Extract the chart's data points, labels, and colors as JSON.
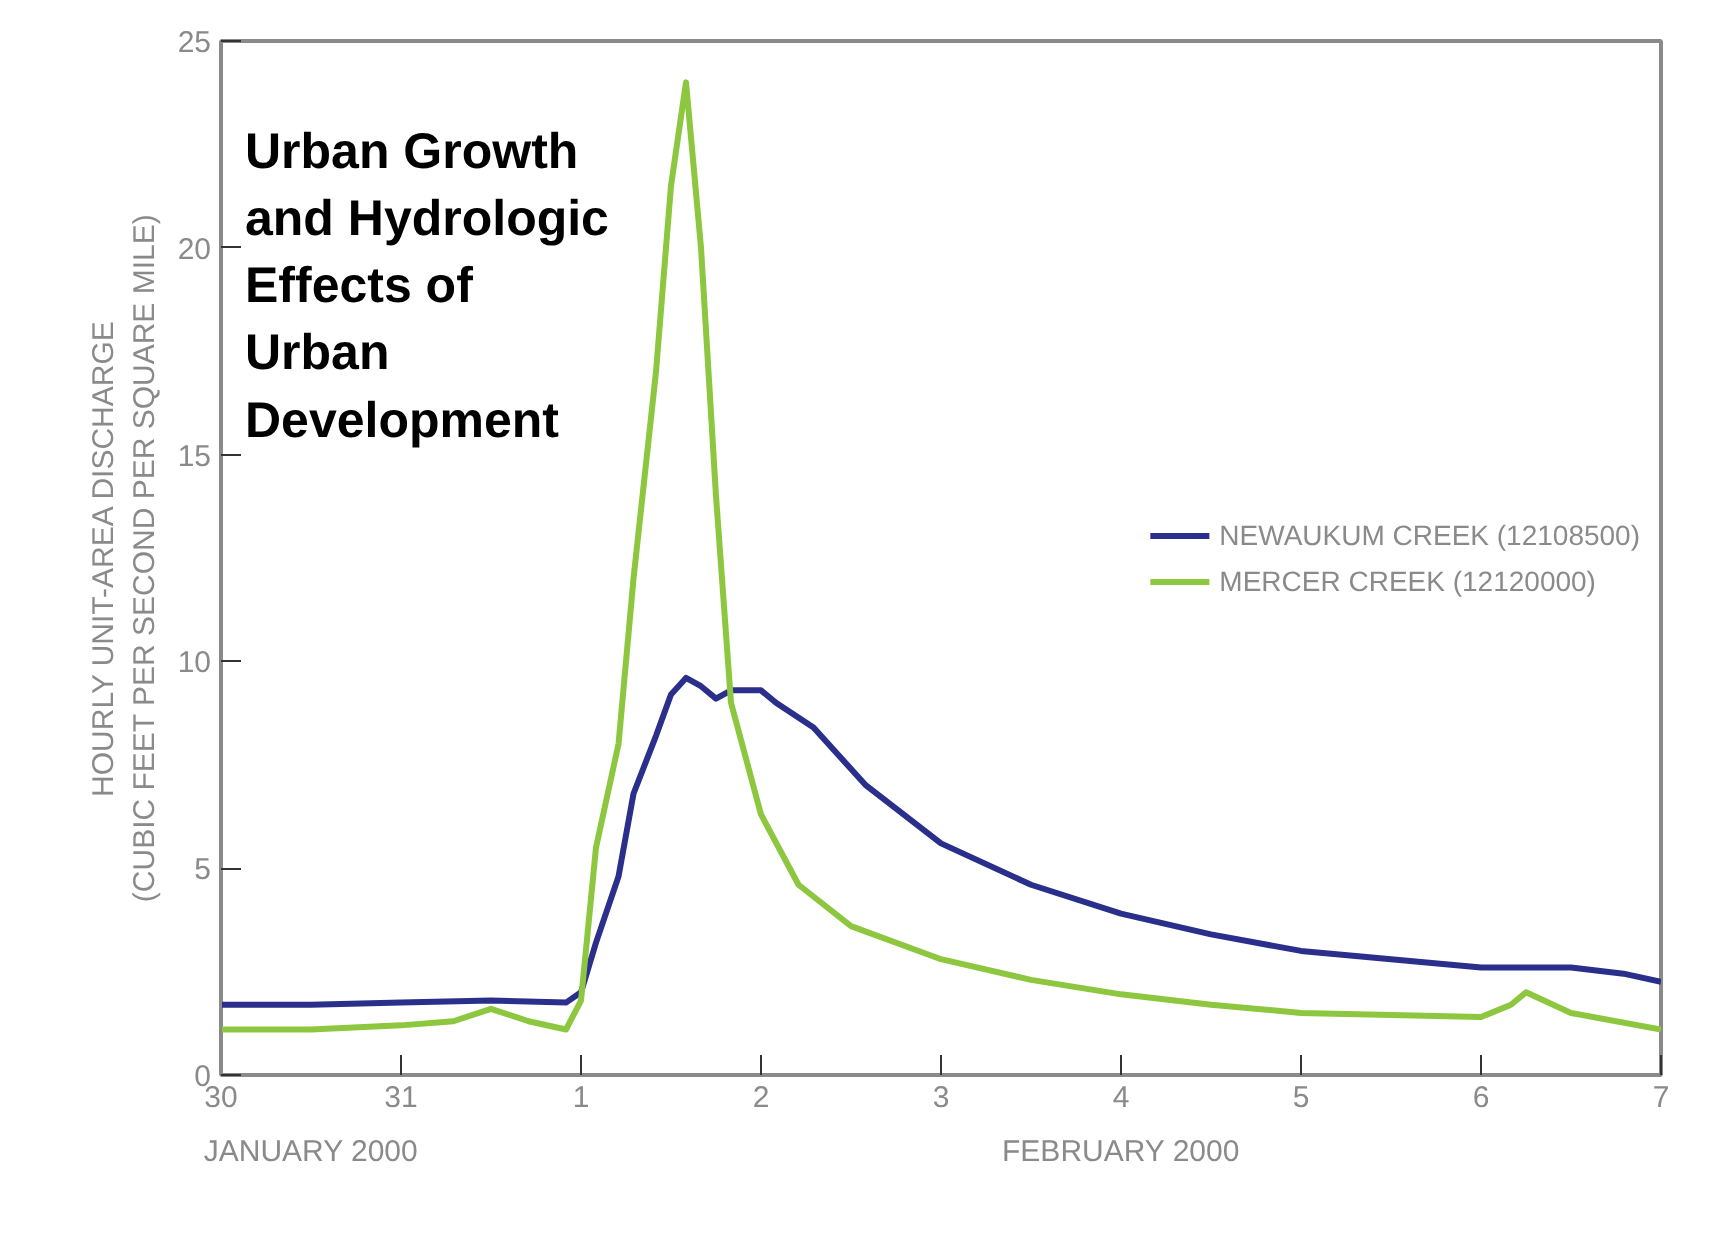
{
  "chart_data": {
    "type": "line",
    "title": "Urban Growth and Hydrologic Effects of Urban Development",
    "ylabel": "HOURLY UNIT-AREA DISCHARGE\n(CUBIC FEET PER SECOND PER SQUARE MILE)",
    "annotations": [
      "JANUARY 2000",
      "FEBRUARY 2000"
    ],
    "xlim": [
      "2000-01-30",
      "2000-02-07"
    ],
    "xticks": [
      {
        "value": "2000-01-30",
        "label": "30"
      },
      {
        "value": "2000-01-31",
        "label": "31"
      },
      {
        "value": "2000-02-01",
        "label": "1"
      },
      {
        "value": "2000-02-02",
        "label": "2"
      },
      {
        "value": "2000-02-03",
        "label": "3"
      },
      {
        "value": "2000-02-04",
        "label": "4"
      },
      {
        "value": "2000-02-05",
        "label": "5"
      },
      {
        "value": "2000-02-06",
        "label": "6"
      },
      {
        "value": "2000-02-07",
        "label": "7"
      }
    ],
    "ylim": [
      0,
      25
    ],
    "yticks": [
      0,
      5,
      10,
      15,
      20,
      25
    ],
    "grid": false,
    "legend": "right",
    "line_style": "solid",
    "marker": "none",
    "series": [
      {
        "name": "NEWAUKUM CREEK (12108500)",
        "color": "#2b2f8c",
        "x": [
          "2000-01-30T00:00",
          "2000-01-30T12:00",
          "2000-01-31T00:00",
          "2000-01-31T12:00",
          "2000-01-31T22:00",
          "2000-02-01T00:00",
          "2000-02-01T02:00",
          "2000-02-01T05:00",
          "2000-02-01T07:00",
          "2000-02-01T10:00",
          "2000-02-01T12:00",
          "2000-02-01T14:00",
          "2000-02-01T16:00",
          "2000-02-01T18:00",
          "2000-02-01T20:00",
          "2000-02-02T00:00",
          "2000-02-02T02:00",
          "2000-02-02T07:00",
          "2000-02-02T14:00",
          "2000-02-03T00:00",
          "2000-02-03T12:00",
          "2000-02-04T00:00",
          "2000-02-04T12:00",
          "2000-02-05T00:00",
          "2000-02-05T12:00",
          "2000-02-06T00:00",
          "2000-02-06T12:00",
          "2000-02-06T19:00",
          "2000-02-07T00:00"
        ],
        "values": [
          1.7,
          1.7,
          1.75,
          1.8,
          1.75,
          2.0,
          3.2,
          4.8,
          6.8,
          8.2,
          9.2,
          9.6,
          9.4,
          9.1,
          9.3,
          9.3,
          9.0,
          8.4,
          7.0,
          5.6,
          4.6,
          3.9,
          3.4,
          3.0,
          2.8,
          2.6,
          2.6,
          2.45,
          2.25
        ]
      },
      {
        "name": "MERCER CREEK (12120000)",
        "color": "#8dc63f",
        "x": [
          "2000-01-30T00:00",
          "2000-01-30T12:00",
          "2000-01-31T00:00",
          "2000-01-31T07:00",
          "2000-01-31T12:00",
          "2000-01-31T17:00",
          "2000-01-31T22:00",
          "2000-02-01T00:00",
          "2000-02-01T02:00",
          "2000-02-01T05:00",
          "2000-02-01T07:00",
          "2000-02-01T10:00",
          "2000-02-01T12:00",
          "2000-02-01T14:00",
          "2000-02-01T16:00",
          "2000-02-01T18:00",
          "2000-02-01T20:00",
          "2000-02-02T00:00",
          "2000-02-02T05:00",
          "2000-02-02T12:00",
          "2000-02-03T00:00",
          "2000-02-03T12:00",
          "2000-02-04T00:00",
          "2000-02-04T12:00",
          "2000-02-05T00:00",
          "2000-02-05T12:00",
          "2000-02-06T00:00",
          "2000-02-06T04:00",
          "2000-02-06T06:00",
          "2000-02-06T12:00",
          "2000-02-07T00:00"
        ],
        "values": [
          1.1,
          1.1,
          1.2,
          1.3,
          1.6,
          1.3,
          1.1,
          1.8,
          5.5,
          8.0,
          12.0,
          17.0,
          21.5,
          24.0,
          20.0,
          14.0,
          9.0,
          6.3,
          4.6,
          3.6,
          2.8,
          2.3,
          1.95,
          1.7,
          1.5,
          1.45,
          1.4,
          1.7,
          2.0,
          1.5,
          1.1
        ]
      }
    ]
  }
}
